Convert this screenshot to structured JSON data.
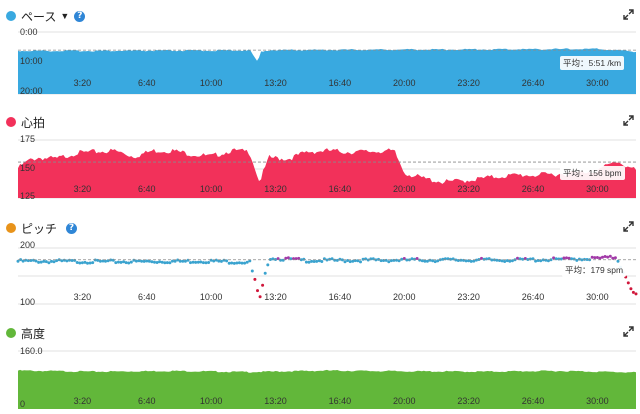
{
  "colors": {
    "pace": "#39a9e0",
    "heart_rate": "#f2315a",
    "cadence_dot": "#e8931a",
    "cadence": "#3aa3cf",
    "cadence_high": "#a23aa8",
    "cadence_low": "#d0173b",
    "elevation": "#62b73a",
    "help": "#2f86d6"
  },
  "x_tick_labels": [
    "3:20",
    "6:40",
    "10:00",
    "13:20",
    "16:40",
    "20:00",
    "23:20",
    "26:40",
    "30:00"
  ],
  "panels": {
    "pace": {
      "title": "ペース",
      "dropdown_icon": "caret-down-icon",
      "help_icon": "help-icon",
      "expand_icon": "expand-icon",
      "y_labels": [
        "0:00",
        "10:00",
        "20:00"
      ],
      "average_label": "平均：5:51 /km"
    },
    "heart_rate": {
      "title": "心拍",
      "expand_icon": "expand-icon",
      "y_labels": [
        "175",
        "150",
        "125"
      ],
      "average_label": "平均：156 bpm"
    },
    "cadence": {
      "title": "ピッチ",
      "help_icon": "help-icon",
      "expand_icon": "expand-icon",
      "y_labels": [
        "200",
        "100"
      ],
      "average_label": "平均：179 spm"
    },
    "elevation": {
      "title": "高度",
      "expand_icon": "expand-icon",
      "y_labels": [
        "160.0",
        "0"
      ]
    }
  },
  "chart_data": [
    {
      "type": "area",
      "ylabel_ticks": [
        "0:00",
        "10:00",
        "20:00"
      ],
      "ylim": [
        0,
        20
      ],
      "x_unit": "minutes",
      "x": [
        0,
        5,
        10,
        12,
        12.4,
        12.6,
        13,
        15,
        20,
        25,
        30,
        31.5,
        32
      ],
      "values": [
        6.2,
        6.2,
        6.1,
        6.0,
        9.8,
        6.3,
        6.0,
        5.9,
        5.8,
        5.7,
        5.6,
        6.2,
        6.5
      ],
      "average": 5.85,
      "average_label": "平均：5:51 /km"
    },
    {
      "type": "area",
      "ylabel_ticks": [
        "175",
        "150",
        "125"
      ],
      "ylim": [
        125,
        175
      ],
      "x_unit": "minutes",
      "x": [
        0,
        0.5,
        1,
        2,
        3,
        4,
        5,
        6,
        7,
        8,
        9,
        10,
        11,
        12,
        12.5,
        13,
        14,
        15,
        16,
        17,
        18,
        19,
        19.5,
        20,
        21,
        22,
        23,
        24,
        25,
        26,
        27,
        28,
        29,
        30,
        31,
        32
      ],
      "values": [
        152,
        158,
        161,
        160,
        165,
        166,
        167,
        162,
        167,
        167,
        164,
        162,
        167,
        166,
        140,
        161,
        160,
        166,
        167,
        166,
        166,
        167,
        166,
        148,
        143,
        140,
        141,
        143,
        145,
        146,
        146,
        147,
        148,
        150,
        158,
        150
      ],
      "average": 156,
      "average_label": "平均：156 bpm"
    },
    {
      "type": "scatter",
      "ylabel_ticks": [
        "200",
        "100"
      ],
      "ylim": [
        100,
        200
      ],
      "x_unit": "minutes",
      "x": [
        0,
        5,
        10,
        11,
        12,
        12.3,
        12.5,
        13,
        15,
        20,
        25,
        28,
        30,
        31,
        31.8,
        32
      ],
      "values": [
        178,
        177,
        178,
        177,
        176,
        140,
        108,
        184,
        179,
        180,
        180,
        181,
        183,
        185,
        122,
        118
      ],
      "average": 179,
      "average_label": "平均：179 spm"
    },
    {
      "type": "area",
      "ylabel_ticks": [
        "160.0",
        "0"
      ],
      "ylim": [
        0,
        160
      ],
      "x_unit": "minutes",
      "x": [
        0,
        4,
        8,
        12,
        16,
        20,
        24,
        28,
        32
      ],
      "values": [
        107,
        104,
        106,
        103,
        107,
        105,
        104,
        106,
        102
      ]
    }
  ]
}
